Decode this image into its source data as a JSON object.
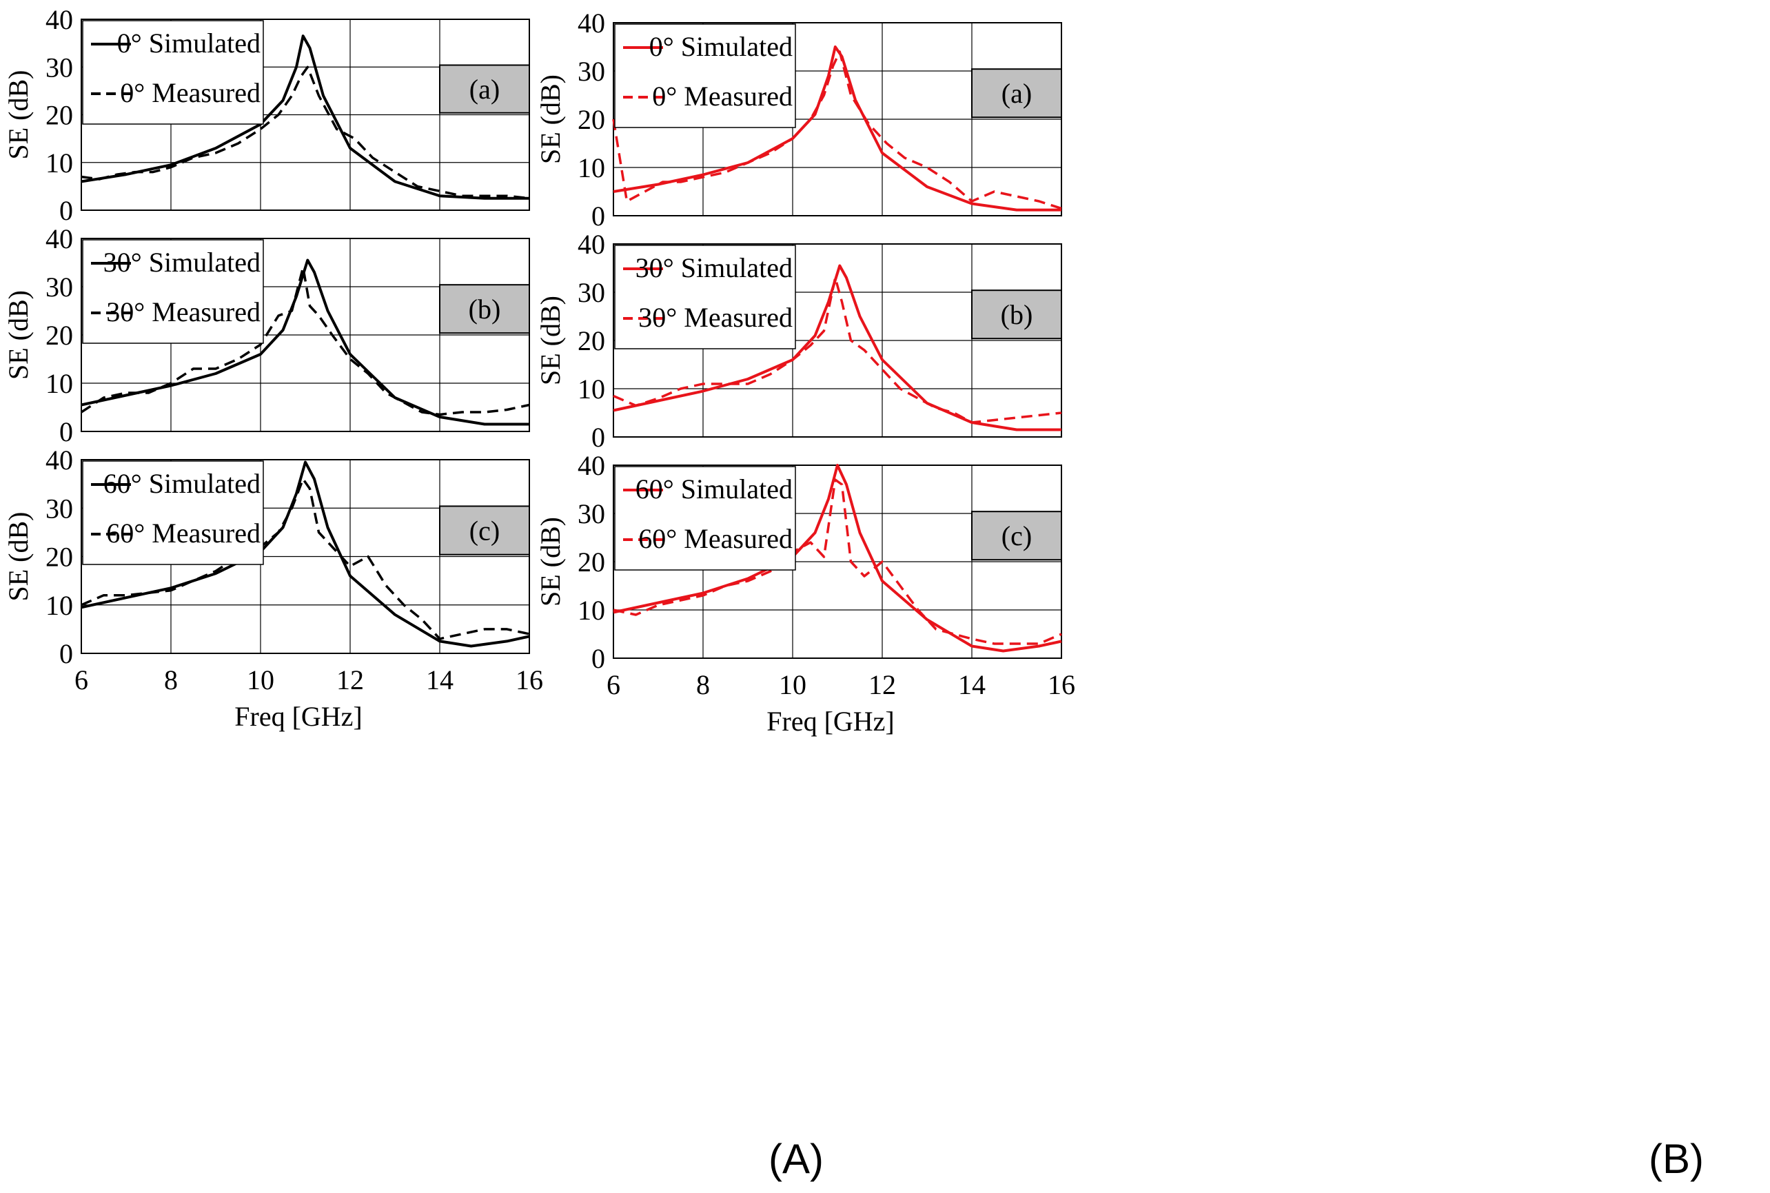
{
  "figure": {
    "label_A": "(A)",
    "label_B": "(B)"
  },
  "chart_data": [
    {
      "id": "A-a",
      "type": "line",
      "panel_label": "(a)",
      "xlabel": "",
      "ylabel": "SE (dB)",
      "xlim": [
        6,
        16
      ],
      "ylim": [
        0,
        40
      ],
      "x_ticks": [
        "6",
        "8",
        "10",
        "12",
        "14",
        "16"
      ],
      "y_ticks": [
        "0",
        "10",
        "20",
        "30",
        "40"
      ],
      "series": [
        {
          "name": "0° Simulated",
          "style": "solid",
          "color": "#000000",
          "x": [
            6,
            7,
            8,
            9,
            10,
            10.5,
            10.8,
            10.95,
            11.1,
            11.4,
            12,
            13,
            14,
            15,
            16
          ],
          "y": [
            6,
            7.5,
            9.5,
            13,
            18,
            23,
            30,
            36.5,
            34,
            24,
            13,
            6,
            3,
            2.5,
            2.5
          ]
        },
        {
          "name": "0° Measured",
          "style": "dashed",
          "color": "#000000",
          "x": [
            6,
            6.4,
            6.8,
            7.2,
            7.6,
            8,
            8.5,
            9,
            9.5,
            10,
            10.4,
            10.7,
            10.9,
            11.05,
            11.3,
            11.7,
            12.1,
            12.5,
            13,
            13.5,
            14,
            14.5,
            15,
            15.5,
            16
          ],
          "y": [
            7,
            6.5,
            7.5,
            8,
            8,
            9,
            11,
            12,
            14,
            17,
            20,
            24,
            28,
            30,
            24,
            17,
            15,
            11,
            8,
            5,
            4,
            3,
            3,
            3,
            2.5
          ]
        }
      ]
    },
    {
      "id": "A-b",
      "type": "line",
      "panel_label": "(b)",
      "xlabel": "",
      "ylabel": "SE (dB)",
      "xlim": [
        6,
        16
      ],
      "ylim": [
        0,
        40
      ],
      "x_ticks": [
        "6",
        "8",
        "10",
        "12",
        "14",
        "16"
      ],
      "y_ticks": [
        "0",
        "10",
        "20",
        "30",
        "40"
      ],
      "series": [
        {
          "name": "30° Simulated",
          "style": "solid",
          "color": "#000000",
          "x": [
            6,
            7,
            8,
            9,
            10,
            10.5,
            10.8,
            11.05,
            11.2,
            11.5,
            12,
            13,
            14,
            15,
            16
          ],
          "y": [
            5.5,
            7.5,
            9.5,
            12,
            16,
            21,
            28,
            35.5,
            33,
            25,
            16,
            7,
            3,
            1.5,
            1.5
          ]
        },
        {
          "name": "30° Measured",
          "style": "dashed",
          "color": "#000000",
          "x": [
            6,
            6.5,
            7,
            7.5,
            8,
            8.5,
            9,
            9.5,
            10,
            10.4,
            10.7,
            10.95,
            11.1,
            11.3,
            11.6,
            12,
            12.4,
            12.8,
            13.2,
            13.6,
            14,
            14.5,
            15,
            15.5,
            16
          ],
          "y": [
            4,
            7,
            8,
            8,
            10,
            13,
            13,
            15,
            18,
            24,
            25,
            34,
            26,
            24,
            20,
            15,
            12,
            8,
            6,
            4,
            3.5,
            4,
            4,
            4.5,
            5.5
          ]
        }
      ]
    },
    {
      "id": "A-c",
      "type": "line",
      "panel_label": "(c)",
      "xlabel": "Freq [GHz]",
      "ylabel": "SE (dB)",
      "xlim": [
        6,
        16
      ],
      "ylim": [
        0,
        40
      ],
      "x_ticks": [
        "6",
        "8",
        "10",
        "12",
        "14",
        "16"
      ],
      "y_ticks": [
        "0",
        "10",
        "20",
        "30",
        "40"
      ],
      "series": [
        {
          "name": "60° Simulated",
          "style": "solid",
          "color": "#000000",
          "x": [
            6,
            7,
            8,
            9,
            10,
            10.5,
            10.8,
            11.0,
            11.2,
            11.5,
            12,
            13,
            14,
            14.7,
            15.5,
            16
          ],
          "y": [
            9.5,
            11.5,
            13.5,
            16.5,
            21,
            26,
            33,
            39.5,
            36,
            26,
            16,
            8,
            2.5,
            1.5,
            2.5,
            3.5
          ]
        },
        {
          "name": "60° Measured",
          "style": "dashed",
          "color": "#000000",
          "x": [
            6,
            6.5,
            7,
            7.5,
            8,
            8.5,
            9,
            9.5,
            10,
            10.4,
            10.7,
            10.95,
            11.1,
            11.3,
            11.6,
            12,
            12.4,
            12.8,
            13.2,
            13.6,
            14,
            14.5,
            15,
            15.5,
            16
          ],
          "y": [
            10,
            12,
            12,
            12.5,
            13,
            15,
            17,
            20,
            22,
            25,
            30,
            36,
            34,
            25,
            22,
            18,
            20,
            14,
            10,
            7,
            3,
            4,
            5,
            5,
            4
          ]
        }
      ]
    },
    {
      "id": "B-a",
      "type": "line",
      "panel_label": "(a)",
      "xlabel": "",
      "ylabel": "SE (dB)",
      "xlim": [
        6,
        16
      ],
      "ylim": [
        0,
        40
      ],
      "x_ticks": [
        "6",
        "8",
        "10",
        "12",
        "14",
        "16"
      ],
      "y_ticks": [
        "0",
        "10",
        "20",
        "30",
        "40"
      ],
      "series": [
        {
          "name": "0° Simulated",
          "style": "solid",
          "color": "#e8141b",
          "x": [
            6,
            7,
            8,
            9,
            10,
            10.5,
            10.8,
            10.95,
            11.1,
            11.4,
            12,
            13,
            14,
            15,
            16
          ],
          "y": [
            5,
            6.5,
            8.5,
            11,
            16,
            21,
            29,
            35,
            33,
            24,
            13,
            6,
            2.5,
            1.2,
            1.2
          ]
        },
        {
          "name": "0° Measured",
          "style": "dashed",
          "color": "#e8141b",
          "x": [
            6,
            6.3,
            6.7,
            7.1,
            7.5,
            8,
            8.5,
            9,
            9.5,
            10,
            10.4,
            10.7,
            10.9,
            11.05,
            11.3,
            11.7,
            12.1,
            12.5,
            13,
            13.5,
            14,
            14.5,
            15,
            15.5,
            16
          ],
          "y": [
            20,
            3,
            5,
            7,
            7,
            8,
            9,
            11,
            13,
            16,
            20,
            25,
            31,
            34,
            25,
            19,
            15,
            12,
            10,
            7,
            3,
            5,
            4,
            3,
            1.5
          ]
        }
      ]
    },
    {
      "id": "B-b",
      "type": "line",
      "panel_label": "(b)",
      "xlabel": "",
      "ylabel": "SE (dB)",
      "xlim": [
        6,
        16
      ],
      "ylim": [
        0,
        40
      ],
      "x_ticks": [
        "6",
        "8",
        "10",
        "12",
        "14",
        "16"
      ],
      "y_ticks": [
        "0",
        "10",
        "20",
        "30",
        "40"
      ],
      "series": [
        {
          "name": "30° Simulated",
          "style": "solid",
          "color": "#e8141b",
          "x": [
            6,
            7,
            8,
            9,
            10,
            10.5,
            10.8,
            11.05,
            11.2,
            11.5,
            12,
            13,
            14,
            15,
            16
          ],
          "y": [
            5.5,
            7.5,
            9.5,
            12,
            16,
            21,
            28,
            35.5,
            33,
            25,
            16,
            7,
            3,
            1.5,
            1.5
          ]
        },
        {
          "name": "30° Measured",
          "style": "dashed",
          "color": "#e8141b",
          "x": [
            6,
            6.5,
            7,
            7.5,
            8,
            8.5,
            9,
            9.5,
            10,
            10.4,
            10.7,
            10.95,
            11.1,
            11.3,
            11.6,
            12,
            12.4,
            12.8,
            13.2,
            13.6,
            14,
            14.5,
            15,
            15.5,
            16
          ],
          "y": [
            8.5,
            6.5,
            8,
            10,
            11,
            11,
            11,
            13,
            16,
            19,
            22,
            33,
            28,
            20,
            18,
            14,
            10,
            8,
            6,
            5,
            3,
            3.5,
            4,
            4.5,
            5
          ]
        }
      ]
    },
    {
      "id": "B-c",
      "type": "line",
      "panel_label": "(c)",
      "xlabel": "Freq [GHz]",
      "ylabel": "SE (dB)",
      "xlim": [
        6,
        16
      ],
      "ylim": [
        0,
        40
      ],
      "x_ticks": [
        "6",
        "8",
        "10",
        "12",
        "14",
        "16"
      ],
      "y_ticks": [
        "0",
        "10",
        "20",
        "30",
        "40"
      ],
      "series": [
        {
          "name": "60° Simulated",
          "style": "solid",
          "color": "#e8141b",
          "x": [
            6,
            7,
            8,
            9,
            10,
            10.5,
            10.8,
            11.0,
            11.2,
            11.5,
            12,
            13,
            14,
            14.7,
            15.5,
            16
          ],
          "y": [
            9.5,
            11.5,
            13.5,
            16.5,
            21,
            26,
            33,
            40,
            36,
            26,
            16,
            8,
            2.5,
            1.5,
            2.5,
            3.5
          ]
        },
        {
          "name": "60° Measured",
          "style": "dashed",
          "color": "#e8141b",
          "x": [
            6,
            6.5,
            7,
            7.5,
            8,
            8.5,
            9,
            9.5,
            10,
            10.4,
            10.7,
            10.95,
            11.1,
            11.3,
            11.6,
            12,
            12.4,
            12.8,
            13.2,
            13.6,
            14,
            14.5,
            15,
            15.5,
            16
          ],
          "y": [
            10,
            9,
            11,
            12,
            13,
            15,
            16,
            18,
            22,
            24,
            21,
            37,
            36,
            20,
            17,
            20,
            15,
            10,
            6,
            5,
            4,
            3,
            3,
            3,
            5
          ]
        }
      ]
    }
  ]
}
